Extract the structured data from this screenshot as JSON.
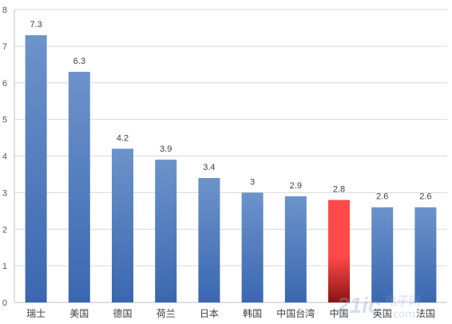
{
  "chart_data": {
    "type": "bar",
    "title": "",
    "xlabel": "",
    "ylabel": "",
    "categories": [
      "瑞士",
      "美国",
      "德国",
      "荷兰",
      "日本",
      "韩国",
      "中国台湾",
      "中国",
      "英国",
      "法国"
    ],
    "values": [
      7.3,
      6.3,
      4.2,
      3.9,
      3.4,
      3,
      2.9,
      2.8,
      2.6,
      2.6
    ],
    "data_labels": [
      "7.3",
      "6.3",
      "4.2",
      "3.9",
      "3.4",
      "3",
      "2.9",
      "2.8",
      "2.6",
      "2.6"
    ],
    "ylim": [
      0,
      8
    ],
    "yticks": [
      0,
      1,
      2,
      3,
      4,
      5,
      6,
      7,
      8
    ],
    "grid": true,
    "legend": "none",
    "highlight_index": 7,
    "colors": {
      "bar_top": "#6d93cb",
      "bar_bottom": "#3a67b0",
      "highlight_top": "#ff4a4a",
      "highlight_bottom": "#8a1414"
    }
  },
  "watermark": {
    "logo_text": "21ic",
    "site_text": "电子网",
    "domain_text": ".com"
  }
}
